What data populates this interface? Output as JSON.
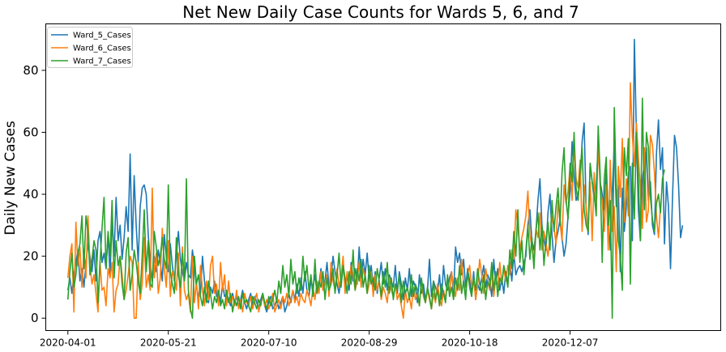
{
  "chart_data": {
    "type": "line",
    "title": "Net New Daily Case Counts for Wards 5, 6, and 7",
    "xlabel": "",
    "ylabel": "Daily New Cases",
    "x_start": "2020-04-01",
    "x_end": "2021-02-10",
    "xlim": [
      "2020-03-21",
      "2021-02-20"
    ],
    "ylim": [
      -4,
      95
    ],
    "x_ticks": [
      "2020-04-01",
      "2020-05-21",
      "2020-07-10",
      "2020-08-29",
      "2020-10-18",
      "2020-12-07"
    ],
    "y_ticks": [
      0,
      20,
      40,
      60,
      80
    ],
    "grid": false,
    "legend": "upper-left",
    "series": [
      {
        "name": "Ward_5_Cases",
        "color": "#1f77b4",
        "values": [
          9,
          13,
          8,
          14,
          18,
          22,
          12,
          16,
          10,
          18,
          24,
          20,
          15,
          22,
          12,
          25,
          28,
          18,
          21,
          16,
          27,
          14,
          32,
          20,
          39,
          25,
          30,
          19,
          26,
          36,
          28,
          53,
          22,
          46,
          30,
          18,
          36,
          42,
          43,
          40,
          27,
          18,
          12,
          20,
          15,
          22,
          18,
          12,
          27,
          20,
          15,
          24,
          17,
          12,
          20,
          28,
          19,
          15,
          12,
          18,
          14,
          13,
          22,
          17,
          10,
          7,
          8,
          20,
          12,
          6,
          5,
          10,
          8,
          12,
          7,
          9,
          5,
          11,
          7,
          8,
          6,
          4,
          8,
          5,
          7,
          4,
          6,
          9,
          5,
          3,
          6,
          8,
          4,
          7,
          5,
          3,
          6,
          8,
          4,
          2,
          5,
          7,
          3,
          4,
          6,
          3,
          5,
          7,
          2,
          4,
          8,
          5,
          9,
          6,
          11,
          7,
          13,
          8,
          15,
          9,
          7,
          12,
          10,
          14,
          8,
          11,
          16,
          9,
          12,
          18,
          10,
          13,
          20,
          15,
          11,
          8,
          13,
          17,
          10,
          14,
          9,
          18,
          12,
          16,
          11,
          23,
          13,
          19,
          14,
          21,
          12,
          17,
          10,
          15,
          8,
          13,
          18,
          11,
          16,
          9,
          14,
          12,
          10,
          17,
          8,
          15,
          11,
          6,
          13,
          9,
          16,
          7,
          12,
          10,
          5,
          14,
          8,
          11,
          6,
          9,
          19,
          7,
          12,
          10,
          8,
          14,
          6,
          17,
          11,
          9,
          13,
          15,
          8,
          23,
          18,
          21,
          14,
          19,
          10,
          16,
          12,
          8,
          15,
          6,
          11,
          9,
          13,
          17,
          10,
          14,
          12,
          7,
          19,
          11,
          16,
          9,
          13,
          8,
          15,
          11,
          18,
          12,
          21,
          14,
          16,
          17,
          15,
          18,
          20,
          30,
          35,
          25,
          22,
          28,
          38,
          45,
          30,
          25,
          22,
          34,
          40,
          27,
          18,
          25,
          28,
          32,
          26,
          20,
          24,
          33,
          41,
          57,
          46,
          38,
          40,
          44,
          57,
          63,
          35,
          27,
          50,
          44,
          38,
          42,
          57,
          44,
          40,
          35,
          48,
          33,
          22,
          41,
          56,
          36,
          43,
          15,
          42,
          28,
          36,
          47,
          49,
          25,
          90,
          60,
          35,
          25,
          45,
          50,
          55,
          38,
          44,
          30,
          27,
          53,
          64,
          48,
          55,
          24,
          44,
          36,
          16,
          39,
          59,
          55,
          43,
          26,
          30
        ]
      },
      {
        "name": "Ward_6_Cases",
        "color": "#ff7f0e",
        "values": [
          13,
          20,
          24,
          2,
          31,
          17,
          23,
          10,
          22,
          13,
          33,
          17,
          11,
          14,
          8,
          2,
          18,
          9,
          10,
          4,
          16,
          13,
          18,
          2,
          9,
          11,
          20,
          14,
          6,
          9,
          14,
          20,
          18,
          0,
          0,
          18,
          6,
          11,
          26,
          10,
          14,
          9,
          42,
          13,
          21,
          8,
          13,
          29,
          16,
          10,
          25,
          7,
          15,
          13,
          9,
          21,
          4,
          23,
          9,
          6,
          8,
          2,
          20,
          5,
          12,
          3,
          17,
          9,
          4,
          12,
          6,
          17,
          20,
          8,
          11,
          4,
          18,
          9,
          14,
          4,
          12,
          5,
          7,
          4,
          9,
          3,
          6,
          2,
          8,
          5,
          4,
          7,
          3,
          6,
          8,
          2,
          5,
          7,
          4,
          6,
          3,
          5,
          8,
          2,
          4,
          6,
          3,
          7,
          5,
          8,
          4,
          6,
          9,
          5,
          7,
          4,
          8,
          6,
          5,
          9,
          7,
          4,
          10,
          6,
          12,
          8,
          15,
          9,
          11,
          14,
          7,
          18,
          12,
          9,
          16,
          10,
          13,
          20,
          8,
          15,
          11,
          17,
          14,
          9,
          12,
          18,
          10,
          16,
          13,
          8,
          11,
          15,
          7,
          14,
          9,
          12,
          6,
          10,
          8,
          5,
          13,
          9,
          7,
          11,
          6,
          8,
          4,
          0,
          9,
          5,
          7,
          3,
          10,
          6,
          8,
          4,
          12,
          7,
          5,
          9,
          6,
          3,
          8,
          5,
          11,
          7,
          4,
          9,
          6,
          12,
          8,
          15,
          10,
          7,
          13,
          9,
          19,
          11,
          8,
          14,
          17,
          10,
          13,
          6,
          11,
          19,
          14,
          8,
          16,
          12,
          9,
          15,
          7,
          13,
          10,
          18,
          11,
          16,
          12,
          17,
          14,
          22,
          19,
          35,
          30,
          22,
          26,
          29,
          33,
          41,
          27,
          23,
          18,
          29,
          26,
          34,
          22,
          28,
          24,
          20,
          26,
          33,
          29,
          24,
          38,
          31,
          25,
          43,
          37,
          41,
          49,
          38,
          56,
          45,
          42,
          51,
          28,
          43,
          36,
          28,
          44,
          25,
          47,
          34,
          56,
          42,
          38,
          28,
          43,
          22,
          51,
          28,
          36,
          15,
          49,
          39,
          58,
          31,
          45,
          33,
          76,
          59,
          49,
          63,
          52,
          42,
          29,
          55,
          31,
          35,
          59,
          56,
          47,
          33,
          26,
          36
        ]
      },
      {
        "name": "Ward_7_Cases",
        "color": "#2ca02c",
        "values": [
          6,
          15,
          21,
          10,
          14,
          21,
          24,
          33,
          16,
          33,
          28,
          14,
          19,
          25,
          22,
          5,
          18,
          29,
          39,
          16,
          28,
          20,
          38,
          13,
          25,
          17,
          20,
          11,
          6,
          21,
          26,
          9,
          14,
          22,
          18,
          12,
          8,
          20,
          35,
          15,
          25,
          11,
          10,
          28,
          23,
          17,
          20,
          26,
          19,
          16,
          43,
          15,
          11,
          8,
          26,
          14,
          10,
          21,
          12,
          45,
          9,
          3,
          0,
          20,
          11,
          14,
          7,
          4,
          10,
          5,
          12,
          8,
          3,
          7,
          5,
          9,
          4,
          6,
          3,
          9,
          5,
          8,
          2,
          6,
          4,
          7,
          3,
          8,
          5,
          6,
          4,
          2,
          7,
          5,
          3,
          6,
          4,
          8,
          5,
          3,
          7,
          4,
          6,
          9,
          5,
          12,
          8,
          17,
          10,
          14,
          7,
          19,
          11,
          15,
          8,
          13,
          9,
          20,
          12,
          17,
          9,
          14,
          7,
          19,
          8,
          12,
          10,
          15,
          6,
          13,
          9,
          11,
          16,
          8,
          14,
          21,
          10,
          17,
          13,
          8,
          15,
          11,
          22,
          9,
          16,
          12,
          19,
          10,
          14,
          8,
          17,
          11,
          13,
          9,
          16,
          12,
          7,
          15,
          10,
          18,
          8,
          13,
          6,
          11,
          9,
          14,
          5,
          12,
          8,
          10,
          6,
          14,
          7,
          11,
          9,
          4,
          13,
          8,
          5,
          10,
          7,
          3,
          12,
          6,
          9,
          4,
          11,
          8,
          5,
          14,
          7,
          10,
          6,
          13,
          9,
          17,
          8,
          12,
          6,
          15,
          10,
          7,
          13,
          9,
          16,
          11,
          8,
          14,
          6,
          12,
          10,
          18,
          9,
          15,
          7,
          13,
          11,
          17,
          14,
          10,
          22,
          16,
          28,
          20,
          35,
          18,
          25,
          14,
          22,
          30,
          19,
          26,
          16,
          28,
          34,
          22,
          30,
          17,
          25,
          31,
          22,
          38,
          28,
          36,
          42,
          30,
          47,
          55,
          38,
          32,
          50,
          44,
          60,
          42,
          38,
          48,
          55,
          35,
          30,
          28,
          50,
          44,
          40,
          33,
          62,
          46,
          18,
          45,
          52,
          30,
          38,
          0,
          68,
          42,
          25,
          20,
          9,
          55,
          46,
          58,
          11,
          50,
          32,
          60,
          45,
          25,
          71,
          35,
          60,
          55,
          39,
          32,
          28,
          37,
          40,
          34,
          45,
          48
        ]
      }
    ]
  }
}
